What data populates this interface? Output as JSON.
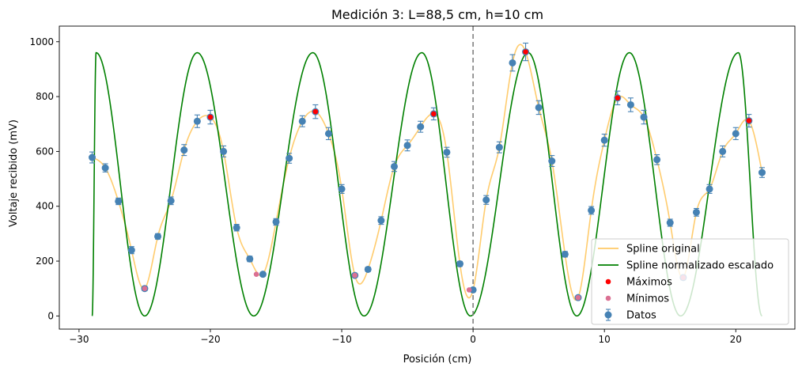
{
  "chart_data": {
    "type": "scatter",
    "title": "Medición 3: L=88,5 cm, h=10 cm",
    "xlabel": "Posición (cm)",
    "ylabel": "Voltaje recibido (mV)",
    "xlim": [
      -31.5,
      24.5
    ],
    "ylim": [
      -48,
      1057
    ],
    "xticks": [
      -30,
      -20,
      -10,
      0,
      10,
      20
    ],
    "yticks": [
      0,
      200,
      400,
      600,
      800,
      1000
    ],
    "grid": false,
    "legend_position": "lower-right",
    "vline_x": 0,
    "colors": {
      "datos": "#4682b4",
      "spline_original": "#ffc966",
      "spline_normalizado": "#008000",
      "maximos": "#ff0000",
      "minimos": "#db7093",
      "vline": "#808080"
    },
    "legend": [
      "Spline original",
      "Spline normalizado escalado",
      "Máximos",
      "Mínimos",
      "Datos"
    ],
    "series": [
      {
        "name": "Datos",
        "kind": "errorbar",
        "x": [
          -29,
          -28,
          -27,
          -26,
          -25,
          -24,
          -23,
          -22,
          -21,
          -20,
          -19,
          -18,
          -17,
          -16,
          -15,
          -14,
          -13,
          -12,
          -11,
          -10,
          -9,
          -8,
          -7,
          -6,
          -5,
          -4,
          -3,
          -2,
          -1,
          0,
          1,
          2,
          3,
          4,
          5,
          6,
          7,
          8,
          9,
          10,
          11,
          12,
          13,
          14,
          15,
          16,
          17,
          18,
          19,
          20,
          21,
          22
        ],
        "y": [
          578,
          540,
          418,
          240,
          100,
          290,
          420,
          605,
          710,
          725,
          600,
          322,
          208,
          152,
          343,
          575,
          710,
          745,
          665,
          463,
          148,
          170,
          348,
          545,
          622,
          690,
          737,
          597,
          190,
          95,
          423,
          615,
          923,
          963,
          760,
          565,
          225,
          67,
          385,
          641,
          795,
          770,
          725,
          570,
          340,
          140,
          378,
          463,
          600,
          665,
          712,
          523
        ],
        "yerr": [
          20,
          15,
          12,
          13,
          8,
          10,
          14,
          20,
          23,
          25,
          20,
          12,
          10,
          7,
          12,
          18,
          20,
          25,
          22,
          16,
          7,
          8,
          14,
          18,
          20,
          20,
          22,
          18,
          9,
          7,
          16,
          20,
          30,
          32,
          25,
          20,
          10,
          6,
          14,
          22,
          25,
          25,
          25,
          18,
          13,
          8,
          14,
          16,
          20,
          22,
          23,
          18
        ]
      },
      {
        "name": "Spline original",
        "kind": "line",
        "x": [
          -29,
          -28,
          -27,
          -26,
          -25,
          -24,
          -23,
          -22,
          -21,
          -20,
          -19,
          -18,
          -17,
          -16,
          -15,
          -14,
          -13,
          -12,
          -11,
          -10,
          -9,
          -8,
          -7,
          -6,
          -5,
          -4,
          -3,
          -2,
          -1,
          0,
          1,
          2,
          3,
          4,
          5,
          6,
          7,
          8,
          9,
          10,
          11,
          12,
          13,
          14,
          15,
          16,
          17,
          18,
          19,
          20,
          21,
          22
        ],
        "y": [
          578,
          540,
          418,
          240,
          100,
          290,
          420,
          605,
          710,
          725,
          600,
          322,
          208,
          152,
          343,
          575,
          710,
          745,
          665,
          463,
          148,
          170,
          348,
          545,
          622,
          690,
          737,
          597,
          190,
          95,
          423,
          615,
          923,
          963,
          760,
          565,
          225,
          67,
          385,
          641,
          795,
          770,
          725,
          570,
          340,
          140,
          378,
          463,
          600,
          665,
          712,
          523
        ]
      },
      {
        "name": "Spline normalizado escalado",
        "kind": "curve",
        "x_start": -29,
        "x_end": 22,
        "ymin": 0,
        "ymax": 960
      },
      {
        "name": "Máximos",
        "kind": "points",
        "x": [
          -20,
          -12,
          -3,
          4,
          11,
          21
        ],
        "y": [
          725,
          745,
          737,
          963,
          795,
          712
        ]
      },
      {
        "name": "Mínimos",
        "kind": "points",
        "x": [
          -25,
          -16.5,
          -9,
          -0.3,
          8,
          16
        ],
        "y": [
          100,
          152,
          148,
          95,
          67,
          140
        ]
      }
    ]
  }
}
